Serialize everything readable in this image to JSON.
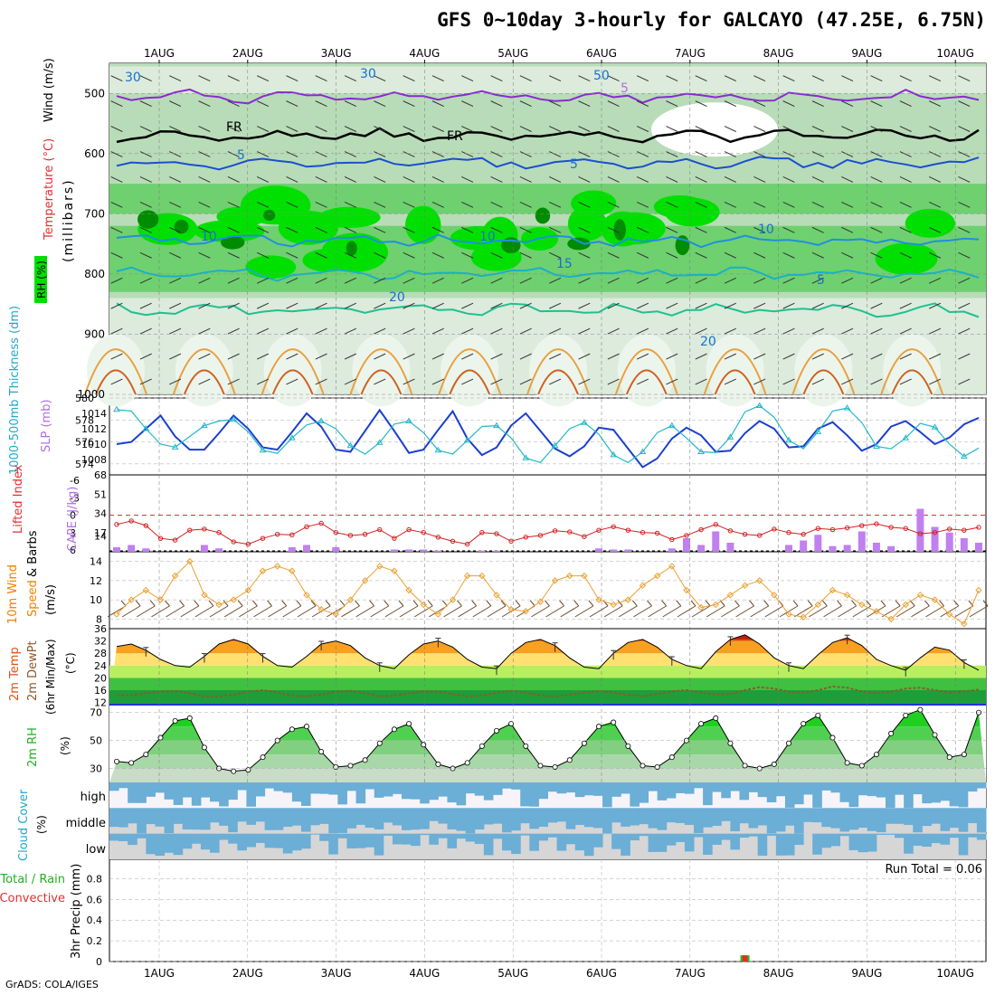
{
  "title": "GFS 0~10day 3-hourly for GALCAYO (47.25E, 6.75N)",
  "credit": "GrADS: COLA/IGES",
  "chart_data": [
    {
      "panel": "upper_air",
      "type": "contour",
      "ylabel": {
        "rh": "RH (%)",
        "temp": "Temperature (°C)",
        "wind": "Wind (m/s)",
        "unit": "(millibars)"
      },
      "yticks": [
        500,
        600,
        700,
        800,
        900,
        1000
      ],
      "ylim": [
        1000,
        450
      ],
      "date_labels": [
        "1AUG",
        "2AUG",
        "3AUG",
        "4AUG",
        "5AUG",
        "6AUG",
        "7AUG",
        "8AUG",
        "9AUG",
        "10AUG"
      ],
      "contour_labels": [
        "5",
        "FR",
        "FR",
        "5",
        "5",
        "10",
        "10",
        "10",
        "15",
        "20",
        "5",
        "20",
        "30",
        "50",
        "30"
      ],
      "isotherms": [
        {
          "label": "-5",
          "color": "#8a2bd0",
          "level_mb": 505
        },
        {
          "label": "FR",
          "color": "#000000",
          "level_mb": 570
        },
        {
          "label": "5",
          "color": "#1a4fd0",
          "level_mb": 615
        },
        {
          "label": "10",
          "color": "#1e90e0",
          "level_mb": 745
        },
        {
          "label": "15",
          "color": "#1ab0c8",
          "level_mb": 800
        },
        {
          "label": "20",
          "color": "#20c090",
          "level_mb": 860
        }
      ]
    },
    {
      "panel": "thickness_slp",
      "type": "line",
      "ylabel_left": "1000-500mb Thickness (dm)",
      "ylabel_right": "SLP (mb)",
      "yticks_left": [
        574,
        576,
        578,
        580
      ],
      "yticks_right": [
        1008,
        1010,
        1012,
        1014
      ],
      "series": [
        {
          "name": "1000-500mb Thickness (dm)",
          "color": "#1a3fd0",
          "values": [
            575.8,
            576.0,
            577.2,
            578.4,
            576.5,
            575.3,
            575.3,
            576.8,
            578.4,
            577.2,
            575.5,
            575.3,
            576.9,
            578.6,
            577.4,
            575.3,
            575.1,
            577.0,
            578.9,
            577.0,
            575.0,
            575.3,
            577.1,
            578.8,
            576.3,
            574.8,
            575.5,
            577.5,
            578.6,
            577.0,
            575.4,
            574.7,
            575.6,
            577.3,
            577.1,
            575.4,
            573.7,
            574.5,
            576.3,
            577.3,
            576.6,
            575.1,
            575.2,
            576.8,
            577.9,
            577.2,
            575.5,
            575.6,
            577.2,
            577.8,
            576.6,
            575.2,
            575.8,
            577.4,
            577.9,
            576.9,
            575.8,
            576.4,
            577.6,
            578.2
          ]
        },
        {
          "name": "SLP (mb)",
          "color": "#22b8c8",
          "values": [
            1014.5,
            1014.3,
            1012.0,
            1010.0,
            1009.6,
            1011.0,
            1012.4,
            1013.0,
            1013.2,
            1011.6,
            1009.2,
            1008.8,
            1010.8,
            1012.5,
            1013.0,
            1012.0,
            1009.8,
            1008.7,
            1010.2,
            1012.6,
            1013.0,
            1011.5,
            1009.2,
            1008.7,
            1010.5,
            1012.3,
            1012.4,
            1010.8,
            1008.2,
            1007.6,
            1009.8,
            1012.0,
            1012.8,
            1011.3,
            1008.6,
            1007.6,
            1009.0,
            1011.5,
            1012.4,
            1010.8,
            1009.0,
            1008.9,
            1010.9,
            1014.2,
            1015.0,
            1013.5,
            1010.5,
            1009.4,
            1011.6,
            1014.3,
            1014.7,
            1012.8,
            1009.7,
            1009.4,
            1010.8,
            1012.7,
            1012.2,
            1010.0,
            1008.4,
            1009.5
          ]
        }
      ]
    },
    {
      "panel": "lifted_index_cape",
      "type": "bar+line",
      "ylabel_left": "Lifted Index",
      "ylabel_right": "CAPE (J/kg)",
      "yticks_left": [
        -6,
        -3,
        0,
        3,
        6
      ],
      "yticks_right": [
        14,
        17,
        34,
        51,
        68
      ],
      "series": [
        {
          "name": "Lifted Index",
          "color": "#d02020",
          "values": [
            1.6,
            1.0,
            1.8,
            4.0,
            4.3,
            2.6,
            2.4,
            3.0,
            4.6,
            5.0,
            4.0,
            3.3,
            3.4,
            2.0,
            1.4,
            3.0,
            3.5,
            3.3,
            2.5,
            4.0,
            2.5,
            3.0,
            3.8,
            4.5,
            5.0,
            3.0,
            3.2,
            4.5,
            3.8,
            3.5,
            2.7,
            2.9,
            3.7,
            2.6,
            2.0,
            2.6,
            3.0,
            3.1,
            4.2,
            3.5,
            2.5,
            1.6,
            2.7,
            3.3,
            3.5,
            2.4,
            3.0,
            3.3,
            2.3,
            2.5,
            2.2,
            1.8,
            1.5,
            2.1,
            2.3,
            3.2,
            3.0,
            2.4,
            2.6,
            2.1
          ]
        },
        {
          "name": "CAPE (J/kg)",
          "color": "#c080f0",
          "values": [
            4,
            6,
            3,
            0,
            0,
            0,
            6,
            3,
            0,
            0,
            0,
            0,
            4,
            6,
            0,
            4,
            0,
            0,
            0,
            2,
            2,
            2,
            1,
            0,
            0,
            1,
            1,
            0,
            0,
            0,
            0,
            0,
            0,
            3,
            2,
            2,
            0,
            0,
            3,
            12,
            6,
            18,
            8,
            0,
            0,
            0,
            6,
            10,
            15,
            5,
            6,
            18,
            8,
            5,
            0,
            38,
            22,
            17,
            12,
            8
          ]
        }
      ]
    },
    {
      "panel": "wind_10m",
      "type": "line",
      "ylabel": "10m Wind Speed & Barbs (m/s)",
      "yticks": [
        8,
        10,
        12,
        14
      ],
      "series": [
        {
          "name": "10m Wind Speed",
          "color": "#e8a030",
          "values": [
            8.5,
            10.0,
            11.0,
            10.0,
            12.5,
            14.0,
            10.5,
            9.5,
            10.0,
            11.0,
            13.0,
            13.5,
            13.0,
            10.5,
            9.0,
            8.5,
            10.0,
            12.0,
            13.5,
            13.0,
            11.0,
            9.5,
            8.5,
            10.0,
            12.5,
            12.5,
            10.5,
            9.0,
            8.8,
            9.8,
            12.0,
            12.5,
            12.5,
            10.0,
            9.5,
            10.0,
            11.5,
            12.5,
            13.5,
            11.0,
            9.2,
            9.5,
            10.5,
            11.5,
            12.0,
            10.5,
            8.5,
            8.2,
            9.5,
            11.0,
            10.5,
            9.5,
            8.8,
            8.0,
            9.5,
            10.5,
            10.0,
            8.5,
            7.5,
            11.0
          ]
        }
      ]
    },
    {
      "panel": "temp_dewpoint",
      "type": "area+line",
      "ylabel": "2m Temp 2m DewPt (6hr Min/Max) (°C)",
      "yticks": [
        12,
        16,
        20,
        24,
        28,
        32,
        36
      ],
      "series": [
        {
          "name": "2m Temp",
          "color": "#e85010",
          "values": [
            30.2,
            31.0,
            29.0,
            26.0,
            24.0,
            23.5,
            27.0,
            31.0,
            32.5,
            31.0,
            27.0,
            24.0,
            23.5,
            27.0,
            31.0,
            32.0,
            30.5,
            26.5,
            24.0,
            23.0,
            27.5,
            31.0,
            32.0,
            30.0,
            26.0,
            23.5,
            23.0,
            28.0,
            31.5,
            32.5,
            30.5,
            26.5,
            23.5,
            23.0,
            28.0,
            31.5,
            32.5,
            30.0,
            26.0,
            24.0,
            23.0,
            28.5,
            32.5,
            34.0,
            31.0,
            26.5,
            24.0,
            23.0,
            27.5,
            31.5,
            33.0,
            30.5,
            26.0,
            24.0,
            22.5,
            26.5,
            30.0,
            29.0,
            25.0,
            22.5
          ]
        },
        {
          "name": "2m DewPt",
          "color": "#8b5a2b",
          "values": [
            14.5,
            14.2,
            15.0,
            15.5,
            15.8,
            15.0,
            14.0,
            14.0,
            14.5,
            15.5,
            16.0,
            15.3,
            14.2,
            14.0,
            14.6,
            15.5,
            15.8,
            15.0,
            14.0,
            14.2,
            15.0,
            15.6,
            15.5,
            14.7,
            14.0,
            14.3,
            15.2,
            15.8,
            15.2,
            14.3,
            14.0,
            14.5,
            15.2,
            15.7,
            15.2,
            14.5,
            14.1,
            14.8,
            15.6,
            16.0,
            15.2,
            14.6,
            14.8,
            16.0,
            17.0,
            16.5,
            15.5,
            15.2,
            16.0,
            17.2,
            16.8,
            15.6,
            15.0,
            15.5,
            16.5,
            16.8,
            16.0,
            15.3,
            15.6,
            16.2
          ]
        }
      ]
    },
    {
      "panel": "rh_2m",
      "type": "area",
      "ylabel": "2m RH (%)",
      "yticks": [
        30,
        50,
        70
      ],
      "series": [
        {
          "name": "2m RH",
          "color": "#20c020",
          "values": [
            35,
            34,
            40,
            52,
            64,
            66,
            45,
            30,
            28,
            29,
            38,
            50,
            58,
            60,
            42,
            31,
            32,
            36,
            48,
            58,
            62,
            47,
            33,
            30,
            34,
            46,
            57,
            62,
            46,
            32,
            31,
            36,
            48,
            60,
            63,
            46,
            32,
            31,
            38,
            50,
            62,
            66,
            48,
            32,
            30,
            33,
            48,
            62,
            68,
            52,
            34,
            32,
            40,
            55,
            68,
            72,
            54,
            38,
            40,
            70
          ]
        }
      ]
    },
    {
      "panel": "cloud_cover",
      "type": "area",
      "ylabel": "Cloud Cover (%)",
      "layer_labels": [
        "high",
        "middle",
        "low"
      ]
    },
    {
      "panel": "precip",
      "type": "bar",
      "ylabel": "3hr Precip (mm)",
      "legend": [
        "Total / Rain",
        "Convective"
      ],
      "yticks": [
        0,
        0.2,
        0.4,
        0.6,
        0.8
      ],
      "ylim": [
        0,
        0.9
      ],
      "annotation": "Run Total = 0.06",
      "bars": [
        {
          "index": 43,
          "total": 0.06,
          "convective": 0.06
        }
      ]
    }
  ],
  "colors": {
    "rh_dark": "#008c00",
    "rh_bright": "#00e000",
    "rh_mid": "#6fd06f",
    "rh_light": "#b8dcb8",
    "rh_pale": "#dcebdc",
    "cloud_blue": "#6baed6",
    "cloud_gray": "#d6d6d6",
    "cloud_white": "#f6f4f8",
    "axis_red": "#e03030",
    "axis_orange": "#f08000",
    "axis_cyan": "#22a8c8",
    "axis_green": "#20b020",
    "axis_purple": "#b070e0"
  }
}
